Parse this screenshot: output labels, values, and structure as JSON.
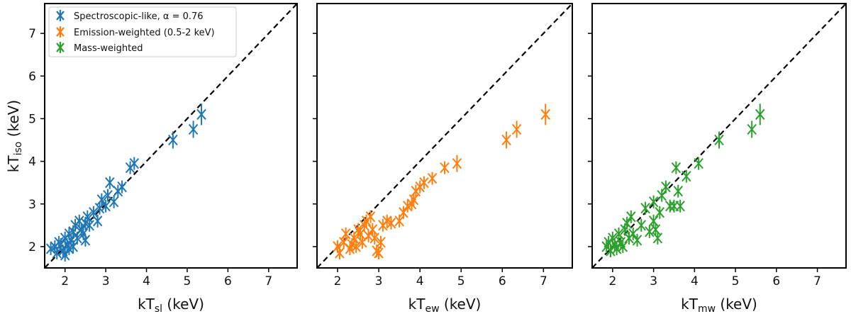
{
  "chart_data": [
    {
      "type": "scatter",
      "xlabel": "kT",
      "xlabel_sub": "sl",
      "xlabel_unit": " (keV)",
      "ylabel": "kT",
      "ylabel_sub": "iso",
      "ylabel_unit": " (keV)",
      "xlim": [
        1.5,
        7.7
      ],
      "ylim": [
        1.5,
        7.7
      ],
      "xticks": [
        "2",
        "3",
        "4",
        "5",
        "6",
        "7"
      ],
      "yticks": [
        "2",
        "3",
        "4",
        "5",
        "6",
        "7"
      ],
      "show_yticklabels": true,
      "identity_line": true,
      "legend_position": "top-left",
      "legend": [
        {
          "label": "Spectroscopic-like, α  =  0.76",
          "color": "#1f77b4"
        },
        {
          "label": "Emission-weighted (0.5-2 keV)",
          "color": "#ff7f0e"
        },
        {
          "label": "Mass-weighted",
          "color": "#2ca02c"
        }
      ],
      "series": [
        {
          "color": "#1f77b4",
          "points": [
            [
              1.65,
              1.95,
              0.15
            ],
            [
              1.75,
              2.0,
              0.15
            ],
            [
              1.8,
              1.85,
              0.15
            ],
            [
              1.85,
              2.1,
              0.15
            ],
            [
              1.9,
              2.05,
              0.15
            ],
            [
              1.95,
              1.9,
              0.15
            ],
            [
              2.0,
              2.2,
              0.15
            ],
            [
              2.0,
              1.8,
              0.15
            ],
            [
              2.05,
              2.05,
              0.15
            ],
            [
              2.1,
              2.3,
              0.15
            ],
            [
              2.1,
              1.95,
              0.15
            ],
            [
              2.15,
              2.15,
              0.15
            ],
            [
              2.2,
              2.0,
              0.15
            ],
            [
              2.2,
              2.35,
              0.15
            ],
            [
              2.25,
              2.5,
              0.15
            ],
            [
              2.3,
              2.2,
              0.15
            ],
            [
              2.35,
              2.6,
              0.15
            ],
            [
              2.4,
              2.4,
              0.15
            ],
            [
              2.45,
              2.3,
              0.15
            ],
            [
              2.5,
              2.55,
              0.15
            ],
            [
              2.5,
              2.15,
              0.15
            ],
            [
              2.55,
              2.7,
              0.15
            ],
            [
              2.6,
              2.5,
              0.15
            ],
            [
              2.7,
              2.8,
              0.15
            ],
            [
              2.8,
              2.6,
              0.15
            ],
            [
              2.85,
              2.9,
              0.15
            ],
            [
              2.9,
              3.1,
              0.15
            ],
            [
              3.0,
              2.95,
              0.15
            ],
            [
              3.05,
              3.2,
              0.15
            ],
            [
              3.1,
              3.5,
              0.15
            ],
            [
              3.2,
              3.05,
              0.15
            ],
            [
              3.3,
              3.3,
              0.15
            ],
            [
              3.4,
              3.4,
              0.15
            ],
            [
              3.6,
              3.85,
              0.15
            ],
            [
              3.7,
              3.95,
              0.15
            ],
            [
              4.65,
              4.5,
              0.2
            ],
            [
              5.15,
              4.75,
              0.2
            ],
            [
              5.35,
              5.1,
              0.25
            ]
          ]
        },
        {
          "color": "#ff7f0e",
          "points": [
            [
              2.0,
              2.0,
              0.15
            ],
            [
              2.05,
              1.85,
              0.15
            ],
            [
              2.15,
              2.1,
              0.15
            ],
            [
              2.2,
              2.3,
              0.15
            ],
            [
              2.3,
              1.95,
              0.15
            ],
            [
              2.35,
              2.05,
              0.15
            ],
            [
              2.4,
              2.2,
              0.15
            ],
            [
              2.45,
              2.0,
              0.15
            ],
            [
              2.5,
              2.4,
              0.15
            ],
            [
              2.55,
              2.3,
              0.15
            ],
            [
              2.6,
              2.1,
              0.15
            ],
            [
              2.65,
              2.5,
              0.15
            ],
            [
              2.7,
              2.6,
              0.15
            ],
            [
              2.75,
              2.25,
              0.15
            ],
            [
              2.8,
              2.7,
              0.15
            ],
            [
              2.85,
              2.4,
              0.15
            ],
            [
              2.9,
              2.2,
              0.15
            ],
            [
              2.95,
              1.9,
              0.15
            ],
            [
              3.0,
              1.85,
              0.15
            ],
            [
              3.05,
              2.1,
              0.15
            ],
            [
              3.1,
              2.5,
              0.15
            ],
            [
              3.2,
              2.6,
              0.15
            ],
            [
              3.3,
              2.55,
              0.15
            ],
            [
              3.5,
              2.6,
              0.15
            ],
            [
              3.6,
              2.8,
              0.15
            ],
            [
              3.7,
              2.95,
              0.15
            ],
            [
              3.8,
              3.0,
              0.15
            ],
            [
              3.85,
              3.1,
              0.15
            ],
            [
              3.9,
              3.3,
              0.15
            ],
            [
              4.0,
              3.4,
              0.15
            ],
            [
              4.1,
              3.5,
              0.15
            ],
            [
              4.3,
              3.6,
              0.15
            ],
            [
              4.6,
              3.85,
              0.15
            ],
            [
              4.9,
              3.95,
              0.2
            ],
            [
              6.1,
              4.5,
              0.2
            ],
            [
              6.35,
              4.75,
              0.2
            ],
            [
              7.05,
              5.1,
              0.25
            ]
          ]
        },
        {
          "color": "#2ca02c",
          "points": [
            [
              1.85,
              2.0,
              0.15
            ],
            [
              1.9,
              2.1,
              0.15
            ],
            [
              1.95,
              1.9,
              0.15
            ],
            [
              2.0,
              2.2,
              0.15
            ],
            [
              2.05,
              2.05,
              0.15
            ],
            [
              2.1,
              1.95,
              0.15
            ],
            [
              2.15,
              2.3,
              0.15
            ],
            [
              2.2,
              2.1,
              0.15
            ],
            [
              2.25,
              2.0,
              0.15
            ],
            [
              2.3,
              2.4,
              0.15
            ],
            [
              2.35,
              2.55,
              0.15
            ],
            [
              2.4,
              2.2,
              0.15
            ],
            [
              2.45,
              2.7,
              0.15
            ],
            [
              2.5,
              2.3,
              0.15
            ],
            [
              2.6,
              2.15,
              0.15
            ],
            [
              2.7,
              2.5,
              0.15
            ],
            [
              2.8,
              2.9,
              0.15
            ],
            [
              2.9,
              2.35,
              0.15
            ],
            [
              3.0,
              2.6,
              0.15
            ],
            [
              3.0,
              3.05,
              0.15
            ],
            [
              3.05,
              2.4,
              0.15
            ],
            [
              3.1,
              2.2,
              0.15
            ],
            [
              3.15,
              2.8,
              0.15
            ],
            [
              3.2,
              3.2,
              0.15
            ],
            [
              3.3,
              3.4,
              0.15
            ],
            [
              3.4,
              2.95,
              0.15
            ],
            [
              3.5,
              2.95,
              0.15
            ],
            [
              3.55,
              3.85,
              0.15
            ],
            [
              3.6,
              3.3,
              0.15
            ],
            [
              3.65,
              2.95,
              0.15
            ],
            [
              3.8,
              3.65,
              0.15
            ],
            [
              4.1,
              3.95,
              0.15
            ],
            [
              4.6,
              4.5,
              0.2
            ],
            [
              5.4,
              4.75,
              0.2
            ],
            [
              5.6,
              5.1,
              0.25
            ]
          ]
        }
      ]
    },
    {
      "type": "scatter",
      "xlabel": "kT",
      "xlabel_sub": "ew",
      "xlabel_unit": " (keV)",
      "xlim": [
        1.5,
        7.7
      ],
      "ylim": [
        1.5,
        7.7
      ],
      "xticks": [
        "2",
        "3",
        "4",
        "5",
        "6",
        "7"
      ],
      "show_yticklabels": false,
      "identity_line": true
    },
    {
      "type": "scatter",
      "xlabel": "kT",
      "xlabel_sub": "mw",
      "xlabel_unit": " (keV)",
      "xlim": [
        1.5,
        7.7
      ],
      "ylim": [
        1.5,
        7.7
      ],
      "xticks": [
        "2",
        "3",
        "4",
        "5",
        "6",
        "7"
      ],
      "show_yticklabels": false,
      "identity_line": true
    }
  ]
}
